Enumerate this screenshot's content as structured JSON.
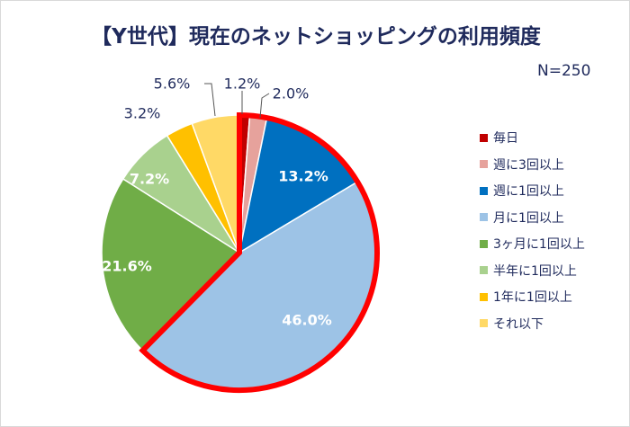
{
  "chart_data": {
    "type": "pie",
    "title": "【Y世代】現在のネットショッピングの利用頻度",
    "annotation": "N=250",
    "legend_position": "right",
    "highlight": "red outline around 毎日 to 月に1回以上",
    "highlight_color": "#FF0000",
    "slices": [
      {
        "label": "毎日",
        "value": 1.2,
        "display": "1.2%",
        "color": "#C00000"
      },
      {
        "label": "週に3回以上",
        "value": 2.0,
        "display": "2.0%",
        "color": "#E6A29C"
      },
      {
        "label": "週に1回以上",
        "value": 13.2,
        "display": "13.2%",
        "color": "#0070C0"
      },
      {
        "label": "月に1回以上",
        "value": 46.0,
        "display": "46.0%",
        "color": "#9DC3E6"
      },
      {
        "label": "3ヶ月に1回以上",
        "value": 21.6,
        "display": "21.6%",
        "color": "#70AD47"
      },
      {
        "label": "半年に1回以上",
        "value": 7.2,
        "display": "7.2%",
        "color": "#A9D18E"
      },
      {
        "label": "1年に1回以上",
        "value": 3.2,
        "display": "3.2%",
        "color": "#FFC000"
      },
      {
        "label": "それ以下",
        "value": 5.6,
        "display": "5.6%",
        "color": "#FFD966"
      }
    ]
  }
}
